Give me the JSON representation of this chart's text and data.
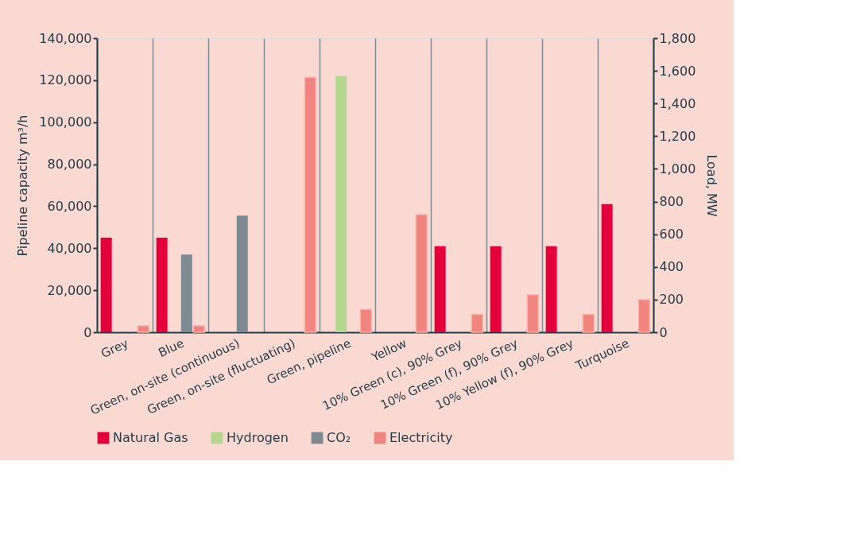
{
  "chart_data": {
    "type": "bar",
    "ylabel": "Pipeline capacity m³/h",
    "y2label": "Load, MW",
    "categories": [
      "Grey",
      "Blue",
      "Green, on-site (continuous)",
      "Green, on-site (fluctuating)",
      "Green, pipeline",
      "Yellow",
      "10% Green (c), 90% Grey",
      "10% Green (f), 90% Grey",
      "10% Yellow (f), 90% Grey",
      "Turquoise"
    ],
    "series": [
      {
        "name": "Natural Gas",
        "color": "#e4003b",
        "values": [
          45000,
          45000,
          null,
          null,
          null,
          null,
          41000,
          41000,
          41000,
          61000
        ]
      },
      {
        "name": "Hydrogen",
        "color": "#b5d691",
        "values": [
          null,
          null,
          null,
          null,
          122000,
          null,
          null,
          null,
          null,
          null
        ]
      },
      {
        "name": "CO₂",
        "color": "#7d8a92",
        "values": [
          null,
          37000,
          55500,
          null,
          null,
          null,
          null,
          null,
          null,
          null
        ]
      },
      {
        "name": "Electricity",
        "color": "#f08580",
        "axis": "y2",
        "values": [
          40,
          40,
          null,
          1560,
          140,
          720,
          110,
          230,
          110,
          200
        ]
      }
    ],
    "ylim": [
      0,
      140000
    ],
    "yticks": [
      0,
      {
        "value": 20000,
        "label": "20,000"
      },
      {
        "value": 40000,
        "label": "40,000"
      },
      {
        "value": 60000,
        "label": "60,000"
      },
      {
        "value": 80000,
        "label": "80,000"
      },
      {
        "value": 100000,
        "label": "100,000"
      },
      {
        "value": 120000,
        "label": "120,000"
      },
      {
        "value": 140000,
        "label": "140,000"
      }
    ],
    "y2lim": [
      0,
      1800
    ],
    "y2ticks": [
      0,
      200,
      400,
      600,
      800,
      {
        "value": 1000,
        "label": "1,000"
      },
      {
        "value": 1200,
        "label": "1,200"
      },
      {
        "value": 1400,
        "label": "1,400"
      },
      {
        "value": 1600,
        "label": "1,600"
      },
      {
        "value": 1800,
        "label": "1,800"
      }
    ],
    "grid": "x",
    "legend": "bottom"
  }
}
